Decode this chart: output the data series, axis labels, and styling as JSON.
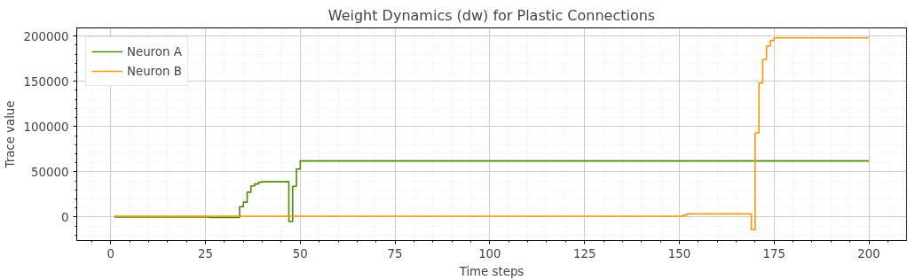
{
  "chart_data": {
    "type": "step",
    "title": "Weight Dynamics (dw) for Plastic Connections",
    "xlabel": "Time steps",
    "ylabel": "Trace value",
    "series": [
      {
        "name": "Neuron A",
        "color": "#4c8c00",
        "x": [
          1,
          26,
          34,
          35,
          36,
          37,
          38,
          39,
          40,
          47,
          48,
          49,
          50,
          200
        ],
        "values": [
          0,
          -500,
          11500,
          16500,
          27500,
          34500,
          36500,
          38500,
          39000,
          -5000,
          34000,
          53000,
          62000,
          62000
        ]
      },
      {
        "name": "Neuron B",
        "color": "#ff9500",
        "x": [
          1,
          151,
          152,
          169,
          170,
          171,
          172,
          173,
          174,
          175,
          200
        ],
        "values": [
          1000,
          2000,
          3500,
          -14000,
          93000,
          148000,
          174000,
          189000,
          195000,
          198000,
          198000
        ]
      }
    ],
    "xlim": [
      -8.95,
      209.95
    ],
    "ylim": [
      -26000,
      209000
    ],
    "xticks": [
      0,
      25,
      50,
      75,
      100,
      125,
      150,
      175,
      200
    ],
    "yticks": [
      0,
      50000,
      100000,
      150000,
      200000
    ],
    "grid": true,
    "legend": "top left",
    "line_style": "solid",
    "marker": "none"
  }
}
